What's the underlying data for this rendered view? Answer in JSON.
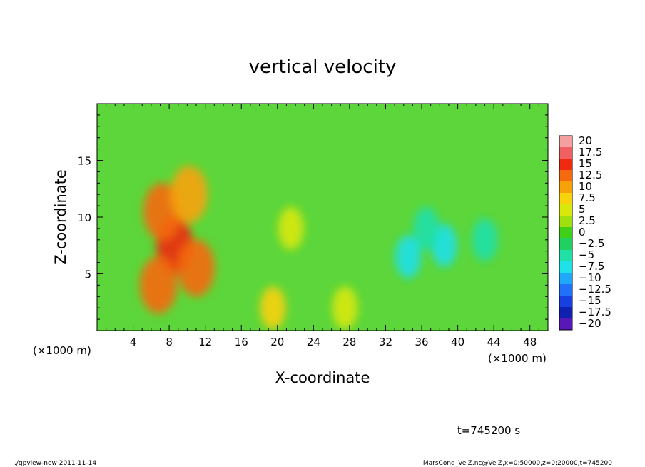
{
  "chart_data": {
    "type": "heatmap",
    "title": "vertical velocity",
    "xlabel": "X-coordinate",
    "ylabel": "Z-coordinate",
    "x_unit_label": "(×1000 m)",
    "x_unit_label_right": "(×1000 m)",
    "xlim": [
      0,
      50
    ],
    "ylim": [
      0,
      20
    ],
    "x_ticks": [
      "4",
      "8",
      "12",
      "16",
      "20",
      "24",
      "28",
      "32",
      "36",
      "40",
      "44",
      "48"
    ],
    "x_tick_values": [
      4,
      8,
      12,
      16,
      20,
      24,
      28,
      32,
      36,
      40,
      44,
      48
    ],
    "y_ticks": [
      "5",
      "10",
      "15"
    ],
    "y_tick_values": [
      5,
      10,
      15
    ],
    "colorbar": {
      "labels": [
        "20",
        "17.5",
        "15",
        "12.5",
        "10",
        "7.5",
        "5",
        "2.5",
        "0",
        "−2.5",
        "−5",
        "−7.5",
        "−10",
        "−12.5",
        "−15",
        "−17.5",
        "−20"
      ],
      "values": [
        20,
        17.5,
        15,
        12.5,
        10,
        7.5,
        5,
        2.5,
        0,
        -2.5,
        -5,
        -7.5,
        -10,
        -12.5,
        -15,
        -17.5,
        -20
      ],
      "colors": [
        "#f4a0a0",
        "#f06060",
        "#f02a10",
        "#f56a0f",
        "#f8a20a",
        "#f8d20a",
        "#d8e80a",
        "#a0e010",
        "#40d018",
        "#20d060",
        "#20e0a8",
        "#20e0e8",
        "#20a8f8",
        "#2070f8",
        "#1840e0",
        "#1020b0",
        "#5818b8"
      ]
    },
    "features": [
      {
        "x": 8.6,
        "z": 7.5,
        "value": 15
      },
      {
        "x": 7.2,
        "z": 10.5,
        "value": 12
      },
      {
        "x": 10.2,
        "z": 12.0,
        "value": 10
      },
      {
        "x": 6.8,
        "z": 4.0,
        "value": 12
      },
      {
        "x": 11.0,
        "z": 5.5,
        "value": 12
      },
      {
        "x": 19.5,
        "z": 2.0,
        "value": 7
      },
      {
        "x": 21.5,
        "z": 9.0,
        "value": 4
      },
      {
        "x": 27.5,
        "z": 2.0,
        "value": 5
      },
      {
        "x": 34.5,
        "z": 6.5,
        "value": -8
      },
      {
        "x": 38.5,
        "z": 7.5,
        "value": -8
      },
      {
        "x": 36.5,
        "z": 9.0,
        "value": -5
      },
      {
        "x": 43.0,
        "z": 8.0,
        "value": -5
      }
    ]
  },
  "time_label": "t=745200 s",
  "footer_left": "./gpview-new  2011-11-14",
  "footer_right": "MarsCond_VelZ.nc@VelZ,x=0:50000,z=0:20000,t=745200"
}
